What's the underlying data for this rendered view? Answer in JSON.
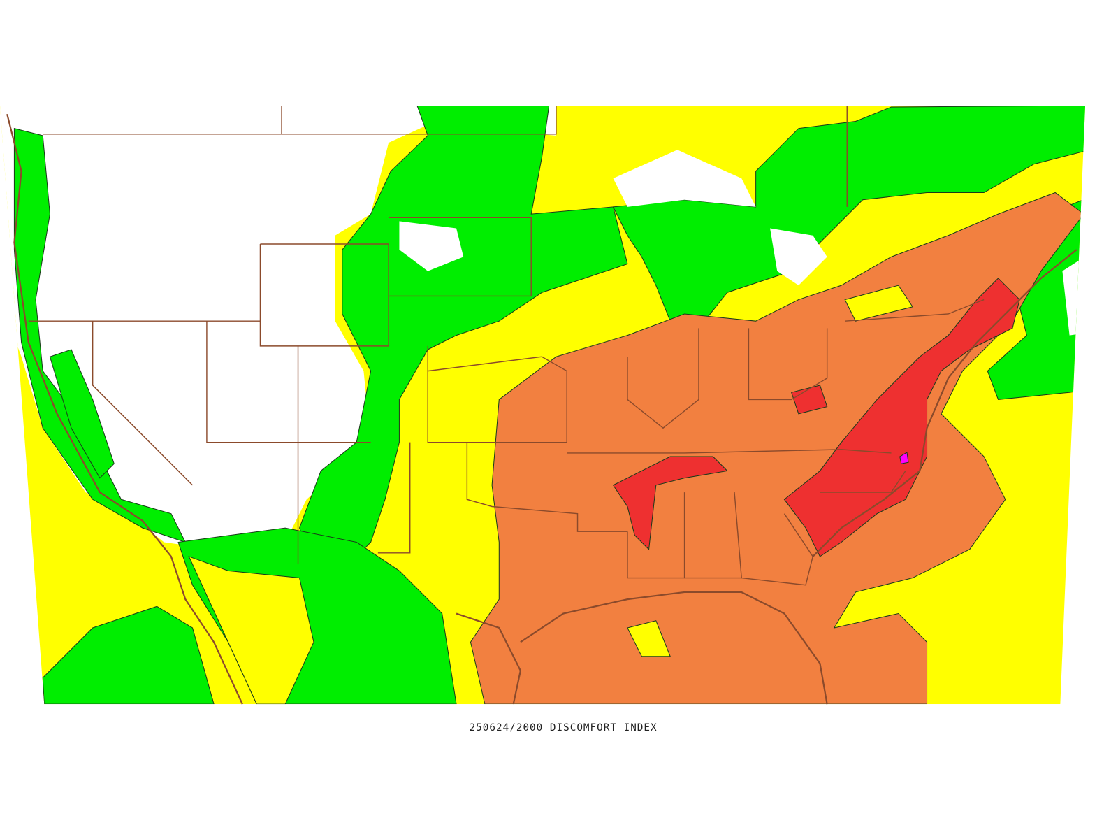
{
  "map": {
    "caption": "250624/2000 DISCOMFORT INDEX"
  }
}
